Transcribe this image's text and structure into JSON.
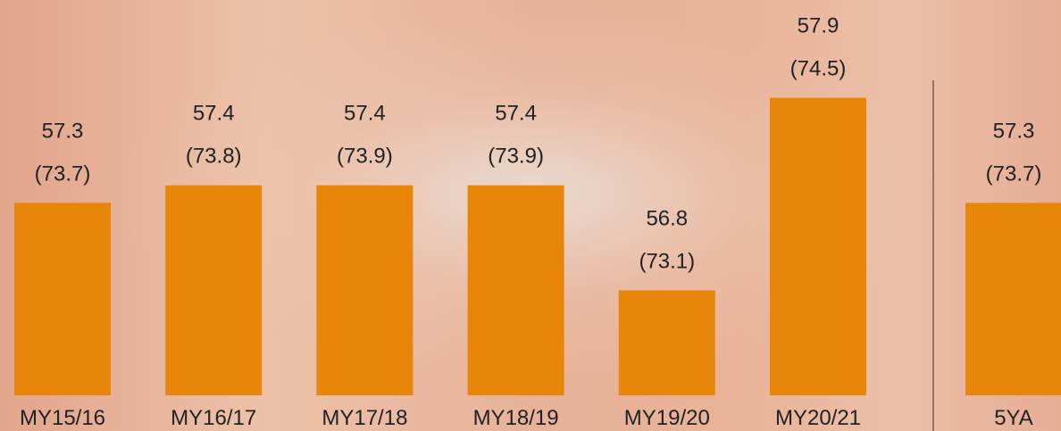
{
  "chart_data": {
    "type": "bar",
    "categories": [
      "MY15/16",
      "MY16/17",
      "MY17/18",
      "MY18/19",
      "MY19/20",
      "MY20/21",
      "5YA"
    ],
    "values": [
      57.3,
      57.4,
      57.4,
      57.4,
      56.8,
      57.9,
      57.3
    ],
    "alt_values": [
      73.7,
      73.8,
      73.9,
      73.9,
      73.1,
      74.5,
      73.7
    ],
    "alt_value_labels": [
      "(73.7)",
      "(73.8)",
      "(73.9)",
      "(73.9)",
      "(73.1)",
      "(74.5)",
      "(73.7)"
    ],
    "color": "#e8860a",
    "ylim": [
      56.2,
      58
    ]
  }
}
